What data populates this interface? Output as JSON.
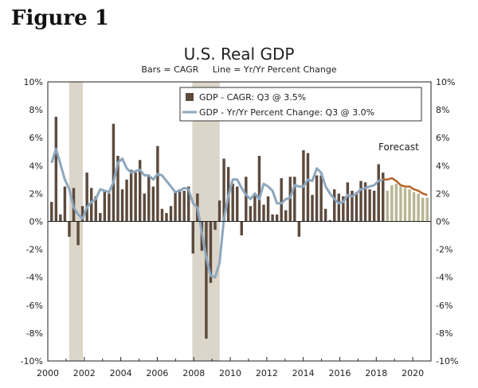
{
  "figure_label": "Figure 1",
  "chart_data": {
    "type": "bar",
    "title": "U.S. Real GDP",
    "subtitle": "Bars = CAGR     Line = Yr/Yr Percent Change",
    "xlabel": "",
    "ylabel": "",
    "ylim": [
      -10,
      10
    ],
    "ytick_labels": [
      "10%",
      "8%",
      "6%",
      "4%",
      "2%",
      "0%",
      "-2%",
      "-4%",
      "-6%",
      "-8%",
      "-10%"
    ],
    "xtick_labels": [
      "2000",
      "2002",
      "2004",
      "2006",
      "2008",
      "2010",
      "2012",
      "2014",
      "2016",
      "2018",
      "2020"
    ],
    "x_start": 2000,
    "x_end": 2021,
    "recessions": [
      [
        2001.17,
        2001.92
      ],
      [
        2007.92,
        2009.42
      ]
    ],
    "legend": [
      {
        "label": "GDP - CAGR: Q3 @ 3.5%",
        "kind": "bar"
      },
      {
        "label": "GDP - Yr/Yr Percent Change: Q3 @ 3.0%",
        "kind": "line"
      }
    ],
    "forecast_label": "Forecast",
    "forecast_start_index": 76,
    "series": [
      {
        "name": "GDP - CAGR",
        "values": [
          1.4,
          7.5,
          0.5,
          2.5,
          -1.1,
          2.4,
          -1.7,
          1.1,
          3.5,
          2.4,
          1.8,
          0.6,
          2.2,
          2.0,
          7.0,
          4.7,
          2.3,
          3.0,
          3.7,
          3.5,
          4.4,
          2.0,
          3.3,
          2.5,
          5.4,
          0.9,
          0.6,
          1.1,
          2.2,
          2.3,
          2.2,
          2.5,
          -2.3,
          2.0,
          -2.1,
          -8.4,
          -4.4,
          -0.6,
          1.5,
          4.5,
          3.9,
          2.7,
          2.5,
          -1.0,
          3.2,
          1.1,
          2.0,
          4.7,
          1.2,
          1.8,
          0.5,
          0.5,
          3.1,
          0.8,
          3.2,
          3.2,
          -1.1,
          5.1,
          4.9,
          1.9,
          3.3,
          3.3,
          0.9,
          0.1,
          2.3,
          2.0,
          1.8,
          2.8,
          2.2,
          2.1,
          2.9,
          2.8,
          2.3,
          2.2,
          4.1,
          3.5,
          2.2,
          2.6,
          2.7,
          2.5,
          2.4,
          2.3,
          2.1,
          2.0,
          1.7,
          1.7
        ]
      },
      {
        "name": "GDP - Yr/Yr Percent Change",
        "values": [
          4.2,
          5.2,
          4.1,
          3.0,
          2.3,
          1.0,
          0.5,
          0.2,
          1.0,
          1.4,
          1.6,
          2.3,
          2.2,
          2.1,
          2.8,
          4.2,
          4.5,
          3.8,
          3.5,
          3.6,
          3.7,
          3.3,
          3.3,
          3.0,
          3.4,
          3.3,
          2.9,
          2.5,
          2.1,
          2.2,
          2.4,
          2.3,
          1.3,
          1.0,
          -0.8,
          -2.6,
          -3.9,
          -4.0,
          -3.0,
          0.2,
          1.8,
          3.0,
          3.0,
          2.4,
          1.9,
          1.6,
          2.0,
          1.6,
          2.7,
          2.5,
          2.2,
          1.3,
          1.3,
          1.6,
          1.7,
          2.6,
          2.5,
          2.5,
          3.0,
          2.9,
          3.8,
          3.5,
          2.5,
          2.0,
          1.6,
          1.3,
          1.4,
          1.9,
          1.8,
          2.0,
          2.3,
          2.4,
          2.5,
          2.6,
          2.9,
          3.0,
          3.0,
          3.1,
          2.9,
          2.6,
          2.5,
          2.5,
          2.3,
          2.2,
          2.0,
          1.9
        ]
      }
    ],
    "colors": {
      "bar": "#5c4a3d",
      "bar_forecast": "#b9b593",
      "line": "#8da7bd",
      "line_forecast": "#b56428",
      "recession": "#dcd6ca",
      "axis": "#222222"
    }
  }
}
